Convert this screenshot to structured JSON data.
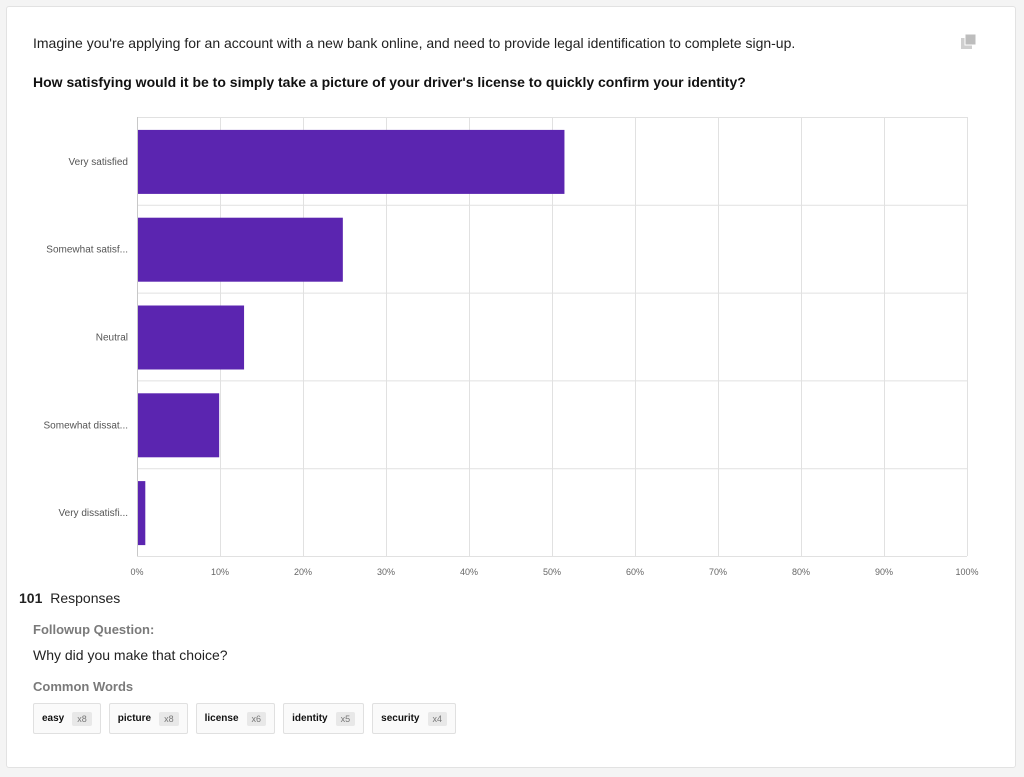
{
  "intro": "Imagine you're applying for an account with a new bank online, and need to provide legal identification to complete sign-up.",
  "question": "How satisfying would it be to simply take a picture of your driver's license to quickly confirm your identity?",
  "responses": {
    "count": "101",
    "label": "Responses"
  },
  "followup": {
    "label": "Followup Question:",
    "text": "Why did you make that choice?"
  },
  "common_words": {
    "label": "Common Words",
    "items": [
      {
        "word": "easy",
        "count": "x8"
      },
      {
        "word": "picture",
        "count": "x8"
      },
      {
        "word": "license",
        "count": "x6"
      },
      {
        "word": "identity",
        "count": "x5"
      },
      {
        "word": "security",
        "count": "x4"
      }
    ]
  },
  "colors": {
    "bar": "#5b25b0",
    "grid": "#e1e1e1",
    "axis": "#c8c8c8"
  },
  "chart_data": {
    "type": "bar",
    "orientation": "horizontal",
    "categories": [
      "Very satisfied",
      "Somewhat satisf...",
      "Neutral",
      "Somewhat dissat...",
      "Very dissatisfi..."
    ],
    "values": [
      51.5,
      24.8,
      12.9,
      9.9,
      1.0
    ],
    "xlim": [
      0,
      100
    ],
    "xticks": [
      "0%",
      "10%",
      "20%",
      "30%",
      "40%",
      "50%",
      "60%",
      "70%",
      "80%",
      "90%",
      "100%"
    ],
    "grid": true,
    "legend": "none"
  }
}
